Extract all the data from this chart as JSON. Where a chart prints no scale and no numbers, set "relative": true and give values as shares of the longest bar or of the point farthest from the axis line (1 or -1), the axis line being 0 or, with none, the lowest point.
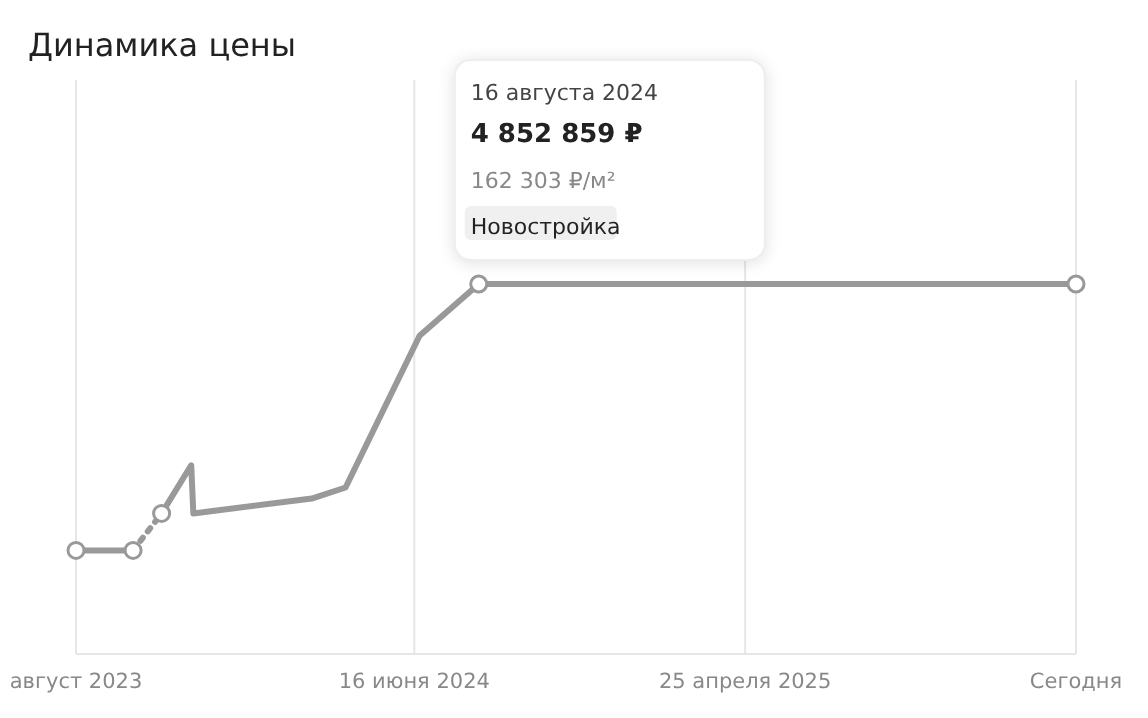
{
  "chart_data": {
    "type": "line",
    "title": "Динамика цены",
    "relative": true,
    "xlim": [
      "2023-08-01",
      "2026-03-04"
    ],
    "xticks": [
      {
        "value": "2023-08-01",
        "label": "август 2023"
      },
      {
        "value": "2024-06-16",
        "label": "16 июня 2024"
      },
      {
        "value": "2025-04-25",
        "label": "25 апреля 2025"
      },
      {
        "value": "2026-03-04",
        "label": "Сегодня"
      }
    ],
    "grid": "x",
    "series": [
      {
        "color": "#999999",
        "line_style": "solid",
        "x": [
          "2023-08-01",
          "2023-09-24"
        ],
        "values": [
          0.28,
          0.28
        ]
      },
      {
        "color": "#999999",
        "line_style": "dotted",
        "x": [
          "2023-09-24",
          "2023-10-21"
        ],
        "values": [
          0.28,
          0.38
        ]
      },
      {
        "color": "#999999",
        "line_style": "solid",
        "x": [
          "2023-10-21",
          "2023-11-18",
          "2023-11-20",
          "2024-03-11",
          "2024-04-12",
          "2024-06-21",
          "2024-08-16",
          "2026-03-04"
        ],
        "values": [
          0.38,
          0.51,
          0.38,
          0.42,
          0.45,
          0.86,
          1,
          1
        ]
      },
      {
        "type": "scatter",
        "color": "#999999",
        "marker": "circle",
        "x": [
          "2023-08-01",
          "2023-09-24",
          "2023-10-21",
          "2024-08-16",
          "2026-03-04"
        ],
        "values": [
          0.28,
          0.28,
          0.38,
          1,
          1
        ]
      }
    ],
    "annotations": [
      "16 августа 2024",
      "4 852 859 ₽",
      "162 303 ₽/м²",
      "Новостройка"
    ]
  }
}
